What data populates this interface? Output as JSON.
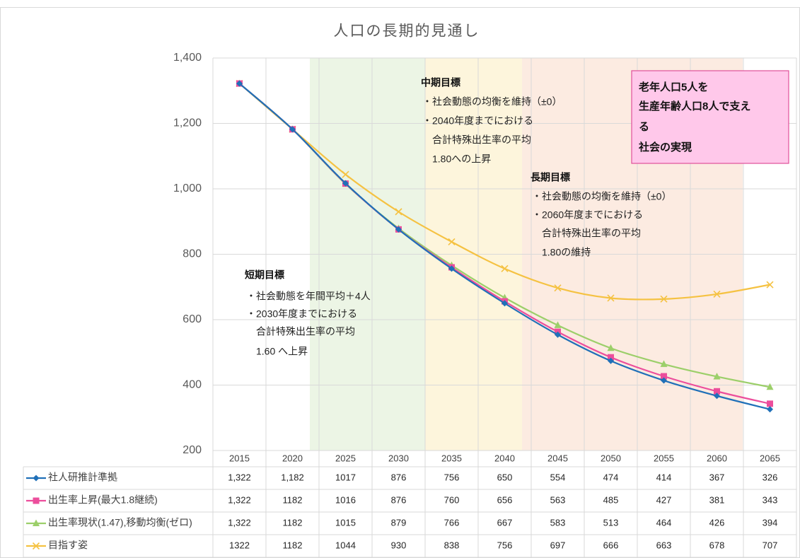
{
  "chart_data": {
    "type": "line",
    "title": "人口の長期的見通し",
    "categories": [
      "2015",
      "2020",
      "2025",
      "2030",
      "2035",
      "2040",
      "2045",
      "2050",
      "2055",
      "2060",
      "2065"
    ],
    "ylim": [
      200,
      1400
    ],
    "yticks": [
      200,
      400,
      600,
      800,
      {
        "value": 1000,
        "label": "1,000"
      },
      {
        "value": 1200,
        "label": "1,200"
      },
      {
        "value": 1400,
        "label": "1,400"
      }
    ],
    "grid": true,
    "series": [
      {
        "name": "社人研推計準拠",
        "color": "#2070b8",
        "marker": "diamond",
        "values": [
          1322,
          1182,
          1017,
          876,
          756,
          650,
          554,
          474,
          414,
          367,
          326
        ],
        "value_labels": [
          "1,322",
          "1,182",
          "1017",
          "876",
          "756",
          "650",
          "554",
          "474",
          "414",
          "367",
          "326"
        ]
      },
      {
        "name": "出生率上昇(最大1.8継続)",
        "color": "#ec4e9c",
        "marker": "square",
        "values": [
          1322,
          1182,
          1016,
          876,
          760,
          656,
          563,
          485,
          427,
          381,
          343
        ],
        "value_labels": [
          "1,322",
          "1182",
          "1016",
          "876",
          "760",
          "656",
          "563",
          "485",
          "427",
          "381",
          "343"
        ]
      },
      {
        "name": "出生率現状(1.47),移動均衡(ゼロ)",
        "color": "#9ccf6a",
        "marker": "triangle",
        "values": [
          1322,
          1182,
          1015,
          879,
          766,
          667,
          583,
          513,
          464,
          426,
          394
        ],
        "value_labels": [
          "1,322",
          "1182",
          "1015",
          "879",
          "766",
          "667",
          "583",
          "513",
          "464",
          "426",
          "394"
        ]
      },
      {
        "name": "目指す姿",
        "color": "#f5c242",
        "marker": "x",
        "values": [
          1322,
          1182,
          1044,
          930,
          838,
          756,
          697,
          666,
          663,
          678,
          707
        ],
        "value_labels": [
          "1322",
          "1182",
          "1044",
          "930",
          "838",
          "756",
          "697",
          "666",
          "663",
          "678",
          "707"
        ]
      }
    ],
    "annotations": [
      {
        "title": "短期目標",
        "lines": [
          "・社会動態を年間平均＋4人",
          "・2030年度までにおける",
          "合計特殊出生率の平均",
          "1.60 へ上昇"
        ]
      },
      {
        "title": "中期目標",
        "lines": [
          "・社会動態の均衡を維持（±0）",
          "・2040年度までにおける",
          "合計特殊出生率の平均",
          "1.80への上昇"
        ]
      },
      {
        "title": "長期目標",
        "lines": [
          "・社会動態の均衡を維持（±0）",
          "・2060年度までにおける",
          "合計特殊出生率の平均",
          "1.80の維持"
        ]
      }
    ],
    "callout": [
      "老年人口5人を",
      "生産年齢人口8人で支え",
      "る",
      "社会の実現"
    ]
  }
}
